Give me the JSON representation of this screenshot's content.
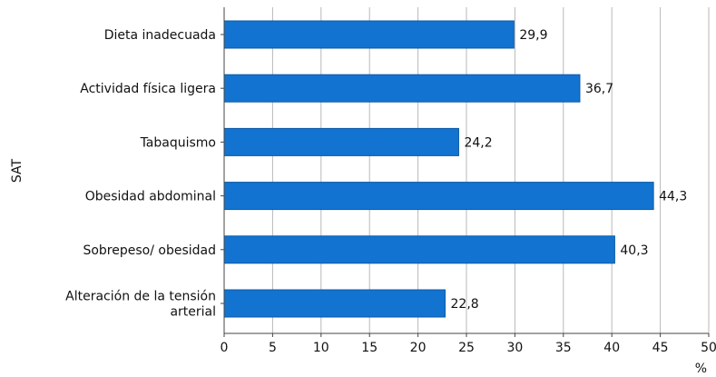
{
  "chart_data": {
    "type": "bar",
    "orientation": "horizontal",
    "title": "",
    "xlabel": "%",
    "ylabel": "SAT",
    "xlim": [
      0,
      50
    ],
    "xticks": [
      0,
      5,
      10,
      15,
      20,
      25,
      30,
      35,
      40,
      45,
      50
    ],
    "grid": true,
    "categories": [
      [
        "Dieta inadecuada"
      ],
      [
        "Actividad física ligera"
      ],
      [
        "Tabaquismo"
      ],
      [
        "Obesidad abdominal"
      ],
      [
        "Sobrepeso/ obesidad"
      ],
      [
        "Alteración de la tensión",
        "arterial"
      ]
    ],
    "values": [
      29.9,
      36.7,
      24.2,
      44.3,
      40.3,
      22.8
    ],
    "value_labels": [
      "29,9",
      "36,7",
      "24,2",
      "44,3",
      "40,3",
      "22,8"
    ],
    "colors": {
      "bar": "#1273d1",
      "bar_edge": "#0c5aa6",
      "grid": "#b8b8b8",
      "axis": "#444444"
    }
  }
}
